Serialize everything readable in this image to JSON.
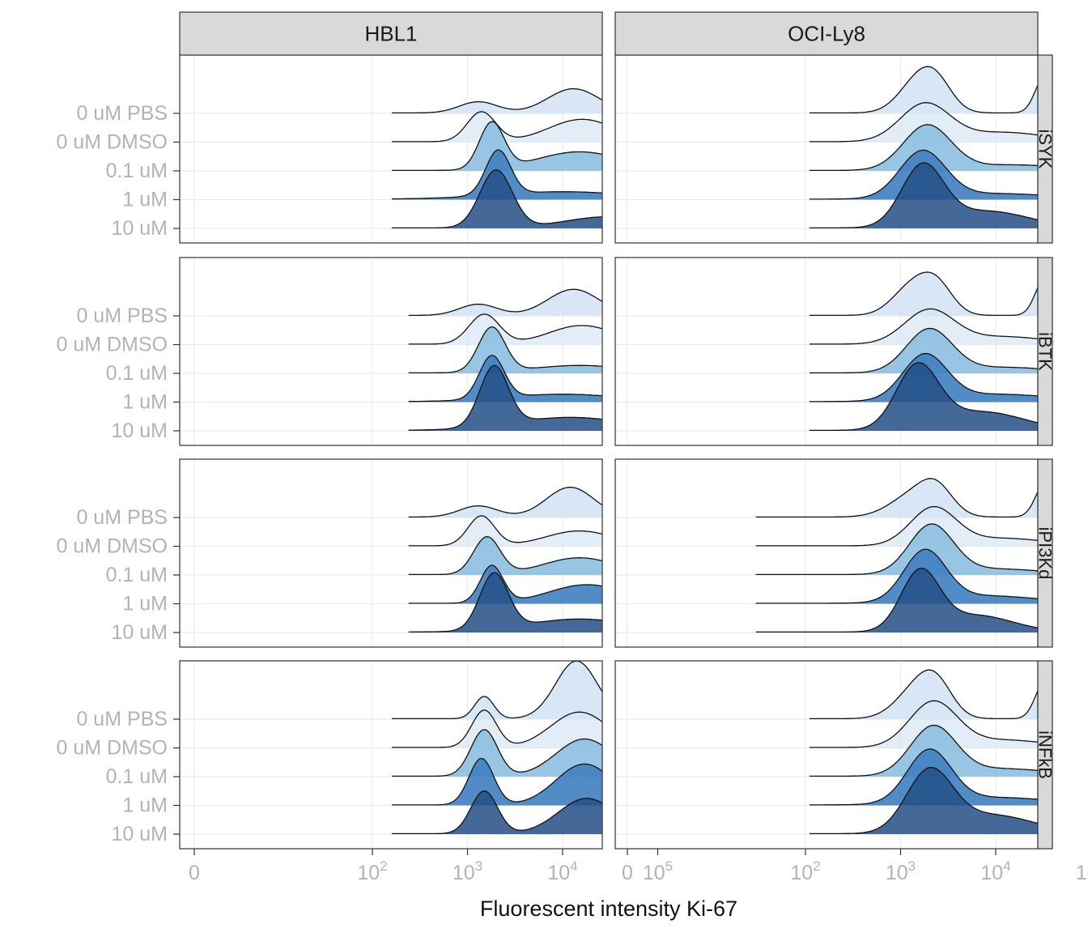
{
  "chart_data": {
    "type": "ridgeline",
    "xlabel": "Fluorescent intensity Ki-67",
    "x_scale": "biexponential (0, then log10)",
    "x_ticks": [
      {
        "value": 0,
        "label": "0",
        "sup": ""
      },
      {
        "value": 100,
        "label": "10",
        "sup": "2"
      },
      {
        "value": 1000,
        "label": "10",
        "sup": "3"
      },
      {
        "value": 10000,
        "label": "10",
        "sup": "4"
      },
      {
        "value": 100000,
        "label": "10",
        "sup": "5"
      }
    ],
    "columns": [
      "HBL1",
      "OCI-Ly8"
    ],
    "rows": [
      "iSYK",
      "iBTK",
      "iPI3Kd",
      "iNFkB"
    ],
    "y_categories": [
      "0 uM PBS",
      "0 uM DMSO",
      "0.1 uM",
      "1 uM",
      "10 uM"
    ],
    "fill_colors": [
      "#d6e5f4",
      "#d6e5f4",
      "#8dbfe0",
      "#3f80c0",
      "#234f86"
    ],
    "fill_opacity": [
      0.95,
      0.7,
      0.9,
      0.9,
      0.85
    ],
    "grid": true,
    "legend": "none",
    "panels": [
      {
        "column": "HBL1",
        "row": "iSYK",
        "x_range": [
          160,
          350000
        ],
        "curves": [
          {
            "category": "0 uM PBS",
            "peaks": [
              [
                1300,
                0.3,
                0.2
              ],
              [
                13000,
                0.65,
                0.27
              ]
            ]
          },
          {
            "category": "0 uM DMSO",
            "peaks": [
              [
                1400,
                0.8,
                0.15
              ],
              [
                16000,
                0.6,
                0.35
              ]
            ]
          },
          {
            "category": "0.1 uM",
            "peaks": [
              [
                1800,
                1.25,
                0.13
              ],
              [
                15000,
                0.5,
                0.45
              ]
            ]
          },
          {
            "category": "1 uM",
            "peaks": [
              [
                2100,
                1.2,
                0.13
              ],
              [
                10000,
                0.2,
                0.7
              ]
            ]
          },
          {
            "category": "10 uM",
            "peaks": [
              [
                2000,
                1.55,
                0.17
              ],
              [
                30000,
                0.3,
                0.45
              ]
            ]
          }
        ]
      },
      {
        "column": "OCI-Ly8",
        "row": "iSYK",
        "x_range": [
          110,
          460000
        ],
        "curves": [
          {
            "category": "0 uM PBS",
            "peaks": [
              [
                1500,
                0.8,
                0.2
              ],
              [
                2400,
                0.65,
                0.17
              ],
              [
                33000,
                1.0,
                0.1
              ]
            ]
          },
          {
            "category": "0 uM DMSO",
            "peaks": [
              [
                1800,
                1.0,
                0.26
              ],
              [
                12000,
                0.25,
                0.45
              ]
            ]
          },
          {
            "category": "0.1 uM",
            "peaks": [
              [
                1900,
                1.2,
                0.25
              ],
              [
                15000,
                0.15,
                0.5
              ]
            ]
          },
          {
            "category": "1 uM",
            "peaks": [
              [
                1700,
                1.25,
                0.24
              ],
              [
                10000,
                0.15,
                0.6
              ]
            ]
          },
          {
            "category": "10 uM",
            "peaks": [
              [
                1700,
                1.6,
                0.22
              ],
              [
                8000,
                0.45,
                0.45
              ]
            ]
          }
        ]
      },
      {
        "column": "HBL1",
        "row": "iBTK",
        "x_range": [
          240,
          350000
        ],
        "curves": [
          {
            "category": "0 uM PBS",
            "peaks": [
              [
                1300,
                0.3,
                0.2
              ],
              [
                13000,
                0.7,
                0.27
              ]
            ]
          },
          {
            "category": "0 uM DMSO",
            "peaks": [
              [
                1500,
                0.8,
                0.16
              ],
              [
                16000,
                0.5,
                0.35
              ]
            ]
          },
          {
            "category": "0.1 uM",
            "peaks": [
              [
                1800,
                1.2,
                0.14
              ],
              [
                15000,
                0.2,
                0.5
              ]
            ]
          },
          {
            "category": "1 uM",
            "peaks": [
              [
                1800,
                1.15,
                0.13
              ],
              [
                10000,
                0.2,
                0.6
              ]
            ]
          },
          {
            "category": "10 uM",
            "peaks": [
              [
                1900,
                1.6,
                0.15
              ],
              [
                12000,
                0.35,
                0.6
              ]
            ]
          }
        ]
      },
      {
        "column": "OCI-Ly8",
        "row": "iBTK",
        "x_range": [
          110,
          460000
        ],
        "curves": [
          {
            "category": "0 uM PBS",
            "peaks": [
              [
                1300,
                0.75,
                0.2
              ],
              [
                2400,
                0.75,
                0.17
              ],
              [
                33000,
                1.0,
                0.1
              ]
            ]
          },
          {
            "category": "0 uM DMSO",
            "peaks": [
              [
                2000,
                0.9,
                0.26
              ],
              [
                12000,
                0.2,
                0.45
              ]
            ]
          },
          {
            "category": "0.1 uM",
            "peaks": [
              [
                2000,
                1.15,
                0.24
              ],
              [
                12000,
                0.15,
                0.5
              ]
            ]
          },
          {
            "category": "1 uM",
            "peaks": [
              [
                1800,
                1.2,
                0.23
              ],
              [
                10000,
                0.2,
                0.6
              ]
            ]
          },
          {
            "category": "10 uM",
            "peaks": [
              [
                1500,
                1.65,
                0.22
              ],
              [
                7000,
                0.5,
                0.45
              ]
            ]
          }
        ]
      },
      {
        "column": "HBL1",
        "row": "iPI3Kd",
        "x_range": [
          240,
          350000
        ],
        "curves": [
          {
            "category": "0 uM PBS",
            "peaks": [
              [
                1300,
                0.3,
                0.2
              ],
              [
                12000,
                0.8,
                0.25
              ]
            ]
          },
          {
            "category": "0 uM DMSO",
            "peaks": [
              [
                1400,
                0.8,
                0.14
              ],
              [
                15000,
                0.4,
                0.35
              ]
            ]
          },
          {
            "category": "0.1 uM",
            "peaks": [
              [
                1600,
                1.0,
                0.14
              ],
              [
                15000,
                0.45,
                0.38
              ]
            ]
          },
          {
            "category": "1 uM",
            "peaks": [
              [
                1800,
                1.0,
                0.12
              ],
              [
                18000,
                0.5,
                0.4
              ]
            ]
          },
          {
            "category": "10 uM",
            "peaks": [
              [
                1900,
                1.5,
                0.15
              ],
              [
                15000,
                0.35,
                0.55
              ]
            ]
          }
        ]
      },
      {
        "column": "OCI-Ly8",
        "row": "iPI3Kd",
        "x_range": [
          30,
          460000
        ],
        "curves": [
          {
            "category": "0 uM PBS",
            "peaks": [
              [
                1400,
                0.6,
                0.25
              ],
              [
                2400,
                0.6,
                0.17
              ],
              [
                33000,
                0.9,
                0.1
              ]
            ]
          },
          {
            "category": "0 uM DMSO",
            "peaks": [
              [
                2200,
                1.0,
                0.24
              ],
              [
                12000,
                0.2,
                0.45
              ]
            ]
          },
          {
            "category": "0.1 uM",
            "peaks": [
              [
                2100,
                1.3,
                0.23
              ],
              [
                10000,
                0.15,
                0.5
              ]
            ]
          },
          {
            "category": "1 uM",
            "peaks": [
              [
                1800,
                1.35,
                0.22
              ],
              [
                8000,
                0.2,
                0.55
              ]
            ]
          },
          {
            "category": "10 uM",
            "peaks": [
              [
                1600,
                1.55,
                0.2
              ],
              [
                6000,
                0.45,
                0.4
              ]
            ]
          }
        ]
      },
      {
        "column": "HBL1",
        "row": "iNFkB",
        "x_range": [
          160,
          350000
        ],
        "curves": [
          {
            "category": "0 uM PBS",
            "peaks": [
              [
                1500,
                0.6,
                0.1
              ],
              [
                14000,
                1.55,
                0.22
              ]
            ]
          },
          {
            "category": "0 uM DMSO",
            "peaks": [
              [
                1500,
                1.0,
                0.13
              ],
              [
                15000,
                0.95,
                0.3
              ]
            ]
          },
          {
            "category": "0.1 uM",
            "peaks": [
              [
                1500,
                1.25,
                0.14
              ],
              [
                17000,
                1.0,
                0.3
              ]
            ]
          },
          {
            "category": "1 uM",
            "peaks": [
              [
                1400,
                1.25,
                0.13
              ],
              [
                17000,
                1.1,
                0.3
              ]
            ]
          },
          {
            "category": "10 uM",
            "peaks": [
              [
                1500,
                1.15,
                0.14
              ],
              [
                18000,
                0.95,
                0.3
              ]
            ]
          }
        ]
      },
      {
        "column": "OCI-Ly8",
        "row": "iNFkB",
        "x_range": [
          110,
          460000
        ],
        "curves": [
          {
            "category": "0 uM PBS",
            "peaks": [
              [
                1500,
                0.8,
                0.22
              ],
              [
                2400,
                0.7,
                0.17
              ],
              [
                33000,
                1.0,
                0.1
              ]
            ]
          },
          {
            "category": "0 uM DMSO",
            "peaks": [
              [
                2200,
                1.2,
                0.25
              ],
              [
                12000,
                0.2,
                0.45
              ]
            ]
          },
          {
            "category": "0.1 uM",
            "peaks": [
              [
                2200,
                1.3,
                0.24
              ],
              [
                12000,
                0.2,
                0.5
              ]
            ]
          },
          {
            "category": "1 uM",
            "peaks": [
              [
                2000,
                1.4,
                0.23
              ],
              [
                10000,
                0.2,
                0.6
              ]
            ]
          },
          {
            "category": "10 uM",
            "peaks": [
              [
                2000,
                1.6,
                0.24
              ],
              [
                9000,
                0.5,
                0.45
              ]
            ]
          }
        ]
      }
    ]
  }
}
